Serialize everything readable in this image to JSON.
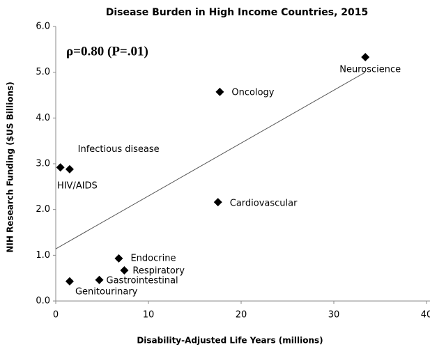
{
  "chart_data": {
    "type": "scatter",
    "title": "Disease Burden in High Income Countries, 2015",
    "x_label": "Disability-Adjusted Life Years (millions)",
    "y_label": "NIH Research Funding ($US Billions)",
    "annotation": "ρ=0.80 (P=.01)",
    "point_labels": [
      "Neuroscience",
      "Oncology",
      "Cardiovascular",
      "Infectious disease",
      "HIV/AIDS",
      "Endocrine",
      "Respiratory",
      "Gastrointestinal",
      "Genitourinary"
    ],
    "x": [
      33.4,
      17.7,
      17.5,
      0.5,
      1.5,
      6.8,
      7.4,
      4.7,
      1.5
    ],
    "values": [
      5.33,
      4.57,
      2.16,
      2.92,
      2.88,
      0.93,
      0.67,
      0.46,
      0.43
    ],
    "color": "#000000",
    "trendline": {
      "x": [
        0,
        33.4
      ],
      "y": [
        1.14,
        5.0
      ]
    },
    "xlim": [
      0,
      40
    ],
    "ylim": [
      0,
      6
    ],
    "xticks": [
      0,
      10,
      20,
      30,
      40
    ],
    "yticks": [
      {
        "value": 0,
        "label": "0.0"
      },
      {
        "value": 1,
        "label": "1.0"
      },
      {
        "value": 2,
        "label": "2.0"
      },
      {
        "value": 3,
        "label": "3.0"
      },
      {
        "value": 4,
        "label": "4.0"
      },
      {
        "value": 5,
        "label": "5.0"
      },
      {
        "value": 6,
        "label": "6.0"
      }
    ]
  }
}
